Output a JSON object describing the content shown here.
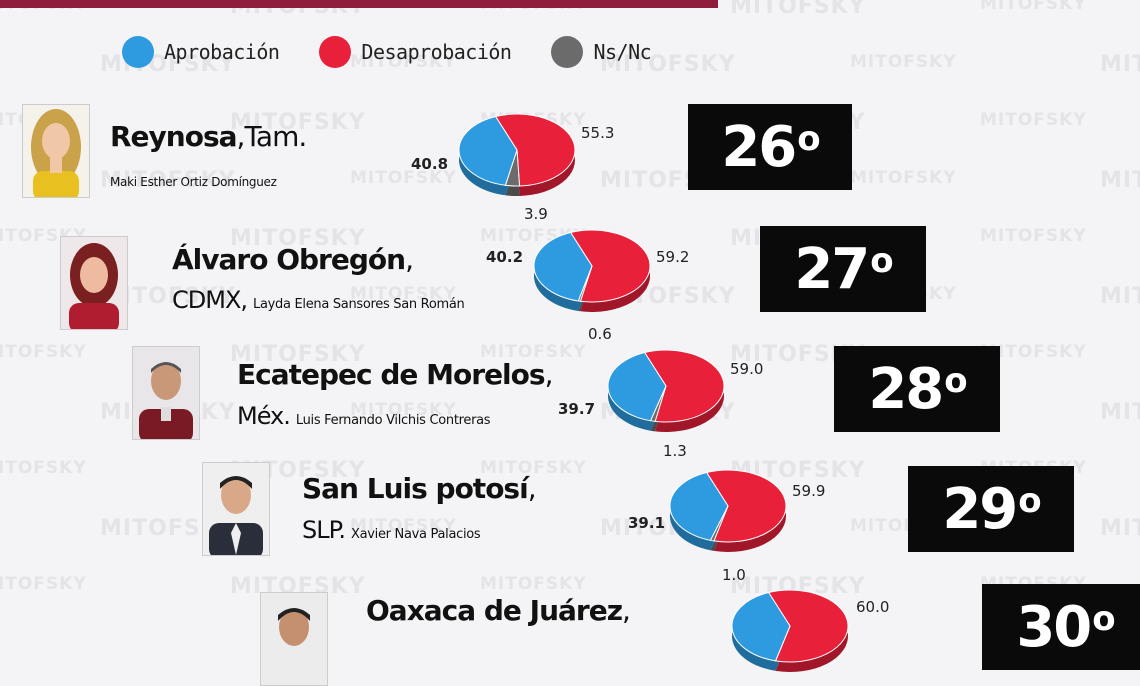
{
  "watermark": "MITOFSKY",
  "legend": [
    {
      "label": "Aprobación",
      "color": "#2e9be0"
    },
    {
      "label": "Desaprobación",
      "color": "#e8203a"
    },
    {
      "label": "Ns/Nc",
      "color": "#6b6b6b"
    }
  ],
  "rows": [
    {
      "city": "Reynosa",
      "region": ",Tam.",
      "mayor": "Maki Esther Ortiz Domínguez",
      "rank": "26",
      "rank_suffix": "o",
      "approval": "40.8",
      "disapproval": "55.3",
      "nsnc": "3.9"
    },
    {
      "city": "Álvaro Obregón",
      "region": ",",
      "region2": "CDMX,",
      "mayor": "Layda Elena Sansores San Román",
      "rank": "27",
      "rank_suffix": "o",
      "approval": "40.2",
      "disapproval": "59.2",
      "nsnc": "0.6"
    },
    {
      "city": "Ecatepec de Morelos",
      "region": ",",
      "region2": "Méx.",
      "mayor": "Luis Fernando Vilchis Contreras",
      "rank": "28",
      "rank_suffix": "o",
      "approval": "39.7",
      "disapproval": "59.0",
      "nsnc": "1.3"
    },
    {
      "city": "San Luis potosí",
      "region": ",",
      "region2": "SLP.",
      "mayor": "Xavier Nava Palacios",
      "rank": "29",
      "rank_suffix": "o",
      "approval": "39.1",
      "disapproval": "59.9",
      "nsnc": "1.0"
    },
    {
      "city": "Oaxaca de Juárez",
      "region": ",",
      "mayor": "",
      "rank": "30",
      "rank_suffix": "o",
      "approval": "",
      "disapproval": "60.0",
      "nsnc": ""
    }
  ],
  "chart_data": {
    "type": "pie",
    "categories": [
      "Aprobación",
      "Desaprobación",
      "Ns/Nc"
    ],
    "series": [
      {
        "name": "Reynosa",
        "values": [
          40.8,
          55.3,
          3.9
        ]
      },
      {
        "name": "Álvaro Obregón",
        "values": [
          40.2,
          59.2,
          0.6
        ]
      },
      {
        "name": "Ecatepec de Morelos",
        "values": [
          39.7,
          59.0,
          1.3
        ]
      },
      {
        "name": "San Luis potosí",
        "values": [
          39.1,
          59.9,
          1.0
        ]
      },
      {
        "name": "Oaxaca de Juárez",
        "values": [
          null,
          60.0,
          null
        ]
      }
    ],
    "colors": [
      "#2e9be0",
      "#e8203a",
      "#6b6b6b"
    ]
  }
}
